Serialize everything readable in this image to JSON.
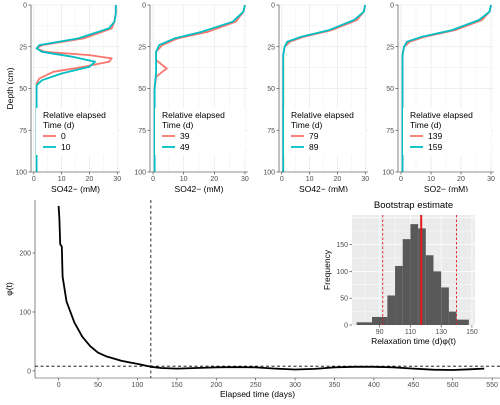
{
  "colors": {
    "red": "#F8766D",
    "teal": "#00BFC4",
    "black": "#000000",
    "grid": "#ebebeb",
    "panel_bg": "#ebebeb",
    "hist_fill": "#595959",
    "ci_red": "#e31a1c"
  },
  "chart_data": [
    {
      "type": "line",
      "panel": "profile-1",
      "xlabel": "SO42− (mM)",
      "ylabel": "Depth (cm)",
      "xlim": [
        -1,
        31
      ],
      "ylim": [
        100,
        0
      ],
      "xticks": [
        "0",
        "10",
        "20",
        "30"
      ],
      "yticks": [
        "0",
        "25",
        "50",
        "75",
        "100"
      ],
      "legend": {
        "title_line1": "Relative elapsed",
        "title_line2": "Time (d)",
        "position": "inside-bottom"
      },
      "series": [
        {
          "name": "0",
          "color": "#F8766D",
          "points": [
            [
              29.5,
              0
            ],
            [
              29.5,
              5
            ],
            [
              29,
              10
            ],
            [
              28,
              14
            ],
            [
              18,
              20
            ],
            [
              3,
              24
            ],
            [
              1,
              26
            ],
            [
              4,
              28
            ],
            [
              20,
              30
            ],
            [
              28,
              32
            ],
            [
              27,
              34
            ],
            [
              18,
              37
            ],
            [
              7,
              40
            ],
            [
              2,
              44
            ],
            [
              1,
              47
            ],
            [
              1,
              55
            ],
            [
              1,
              100
            ]
          ]
        },
        {
          "name": "10",
          "color": "#00BFC4",
          "points": [
            [
              29.5,
              0
            ],
            [
              29.5,
              5
            ],
            [
              29,
              10
            ],
            [
              27,
              14
            ],
            [
              16,
              20
            ],
            [
              2,
              24
            ],
            [
              1,
              26
            ],
            [
              3,
              28
            ],
            [
              14,
              31
            ],
            [
              22,
              34
            ],
            [
              20,
              37
            ],
            [
              10,
              41
            ],
            [
              3,
              45
            ],
            [
              1,
              48
            ],
            [
              1,
              55
            ],
            [
              1,
              100
            ]
          ]
        }
      ]
    },
    {
      "type": "line",
      "panel": "profile-2",
      "xlabel": "SO42− (mM)",
      "xlim": [
        -1,
        31
      ],
      "ylim": [
        100,
        0
      ],
      "xticks": [
        "0",
        "10",
        "20",
        "30"
      ],
      "yticks": [
        "0",
        "25",
        "50",
        "75",
        "100"
      ],
      "legend": {
        "title_line1": "Relative elapsed",
        "title_line2": "Time (d)",
        "position": "inside-bottom"
      },
      "series": [
        {
          "name": "39",
          "color": "#F8766D",
          "points": [
            [
              30,
              0
            ],
            [
              29.5,
              4
            ],
            [
              27,
              10
            ],
            [
              18,
              16
            ],
            [
              8,
              20
            ],
            [
              3,
              24
            ],
            [
              1,
              28
            ],
            [
              1,
              33
            ],
            [
              3,
              36
            ],
            [
              4.5,
              38
            ],
            [
              3,
              40
            ],
            [
              1,
              43
            ],
            [
              0.5,
              50
            ],
            [
              0.5,
              100
            ]
          ]
        },
        {
          "name": "49",
          "color": "#00BFC4",
          "points": [
            [
              30,
              0
            ],
            [
              29.5,
              4
            ],
            [
              26,
              10
            ],
            [
              16,
              16
            ],
            [
              7,
              20
            ],
            [
              2,
              24
            ],
            [
              1,
              28
            ],
            [
              1,
              35
            ],
            [
              1,
              40
            ],
            [
              0.5,
              50
            ],
            [
              0.5,
              100
            ]
          ]
        }
      ]
    },
    {
      "type": "line",
      "panel": "profile-3",
      "xlabel": "SO42− (mM)",
      "xlim": [
        -1,
        31
      ],
      "ylim": [
        100,
        0
      ],
      "xticks": [
        "0",
        "10",
        "20",
        "30"
      ],
      "yticks": [
        "0",
        "25",
        "50",
        "75",
        "100"
      ],
      "legend": {
        "title_line1": "Relative elapsed",
        "title_line2": "Time (d)",
        "position": "inside-bottom"
      },
      "series": [
        {
          "name": "79",
          "color": "#F8766D",
          "points": [
            [
              30,
              0
            ],
            [
              29.5,
              4
            ],
            [
              27,
              9
            ],
            [
              18,
              15
            ],
            [
              8,
              19
            ],
            [
              3,
              22
            ],
            [
              1,
              25
            ],
            [
              0.5,
              30
            ],
            [
              0.5,
              100
            ]
          ]
        },
        {
          "name": "89",
          "color": "#00BFC4",
          "points": [
            [
              30,
              0
            ],
            [
              29.5,
              4
            ],
            [
              26,
              9
            ],
            [
              17,
              15
            ],
            [
              7,
              19
            ],
            [
              2,
              22
            ],
            [
              1,
              25
            ],
            [
              0.5,
              30
            ],
            [
              0.5,
              100
            ]
          ]
        }
      ]
    },
    {
      "type": "line",
      "panel": "profile-4",
      "xlabel": "SO2− (mM)",
      "xlim": [
        -1,
        31
      ],
      "ylim": [
        100,
        0
      ],
      "xticks": [
        "0",
        "10",
        "20",
        "30"
      ],
      "yticks": [
        "0",
        "25",
        "50",
        "75",
        "100"
      ],
      "legend": {
        "title_line1": "Relative elapsed",
        "title_line2": "Time (d)",
        "position": "inside-bottom"
      },
      "series": [
        {
          "name": "139",
          "color": "#F8766D",
          "points": [
            [
              30,
              0
            ],
            [
              29.5,
              4
            ],
            [
              27,
              9
            ],
            [
              18,
              15
            ],
            [
              8,
              19
            ],
            [
              3,
              22
            ],
            [
              1,
              25
            ],
            [
              0.5,
              30
            ],
            [
              0.5,
              100
            ]
          ]
        },
        {
          "name": "159",
          "color": "#00BFC4",
          "points": [
            [
              30,
              0
            ],
            [
              29.5,
              4
            ],
            [
              26,
              9
            ],
            [
              17,
              15
            ],
            [
              7,
              19
            ],
            [
              2,
              22
            ],
            [
              1,
              25
            ],
            [
              0.5,
              30
            ],
            [
              0.5,
              100
            ]
          ]
        }
      ]
    },
    {
      "type": "line",
      "panel": "phi-curve",
      "xlabel": "Elapsed time (days)",
      "ylabel": "φ(t)",
      "xlim": [
        -30,
        560
      ],
      "ylim": [
        -12,
        290
      ],
      "xticks": [
        "0",
        "50",
        "100",
        "150",
        "200",
        "250",
        "300",
        "350",
        "400",
        "450",
        "500",
        "550"
      ],
      "yticks": [
        "0",
        "100",
        "200"
      ],
      "vline_x": 117,
      "hline_y": 8,
      "series": [
        {
          "name": "",
          "color": "#000000",
          "points": [
            [
              0,
              280
            ],
            [
              1,
              258
            ],
            [
              2,
              215
            ],
            [
              4,
              211
            ],
            [
              5,
              160
            ],
            [
              10,
              118
            ],
            [
              20,
              82
            ],
            [
              30,
              58
            ],
            [
              40,
              42
            ],
            [
              50,
              31
            ],
            [
              60,
              25
            ],
            [
              80,
              17
            ],
            [
              100,
              12
            ],
            [
              117,
              7
            ],
            [
              130,
              5
            ],
            [
              150,
              4
            ],
            [
              175,
              5
            ],
            [
              200,
              6
            ],
            [
              225,
              6.5
            ],
            [
              250,
              6
            ],
            [
              275,
              4
            ],
            [
              300,
              2.5
            ],
            [
              325,
              3.5
            ],
            [
              350,
              6
            ],
            [
              375,
              7
            ],
            [
              400,
              7
            ],
            [
              425,
              6
            ],
            [
              450,
              4
            ],
            [
              475,
              2
            ],
            [
              500,
              1.5
            ],
            [
              525,
              3
            ],
            [
              540,
              4
            ]
          ]
        }
      ]
    },
    {
      "type": "bar",
      "panel": "bootstrap-histogram",
      "title": "Bootstrap estimate",
      "xlabel": "Relaxation time (d)φ(t)",
      "ylabel": "Frequency",
      "xlim": [
        72,
        152
      ],
      "ylim": [
        0,
        205
      ],
      "xticks": [
        "90",
        "110",
        "130",
        "150"
      ],
      "yticks": [
        "0",
        "50",
        "100",
        "150"
      ],
      "bin_edges": [
        75,
        85,
        95,
        100,
        105,
        110,
        115,
        120,
        125,
        130,
        135,
        140,
        148
      ],
      "values": [
        5,
        15,
        55,
        110,
        160,
        188,
        180,
        130,
        100,
        70,
        25,
        10
      ],
      "estimate_x": 117,
      "ci_x": [
        92,
        140
      ]
    }
  ]
}
